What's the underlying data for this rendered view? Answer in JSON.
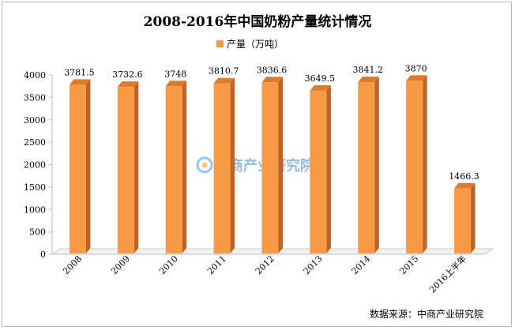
{
  "chart_data": {
    "type": "bar",
    "title": "2008-2016年中国奶粉产量统计情况",
    "categories": [
      "2008",
      "2009",
      "2010",
      "2011",
      "2012",
      "2013",
      "2014",
      "2015",
      "2016上半年"
    ],
    "series": [
      {
        "name": "产量（万吨）",
        "values": [
          3781.5,
          3732.6,
          3748,
          3810.7,
          3836.6,
          3649.5,
          3841.2,
          3870,
          1466.3
        ]
      }
    ],
    "data_labels": [
      "3781.5",
      "3732.6",
      "3748",
      "3810.7",
      "3836.6",
      "3649.5",
      "3841.2",
      "3870",
      "1466.3"
    ],
    "yticks": [
      "0",
      "500",
      "1000",
      "1500",
      "2000",
      "2500",
      "3000",
      "3500",
      "4000"
    ],
    "ylim": [
      0,
      4000
    ],
    "legend_position": "top-center",
    "grid": false,
    "bar_color": "#f79a45",
    "bar_side_color": "#b8652a",
    "bar_top_color": "#e07a2a"
  },
  "source": "数据来源：中商产业研究院",
  "watermark": {
    "text": "中商产业研究院",
    "icon": "zhongshang-logo-icon"
  }
}
